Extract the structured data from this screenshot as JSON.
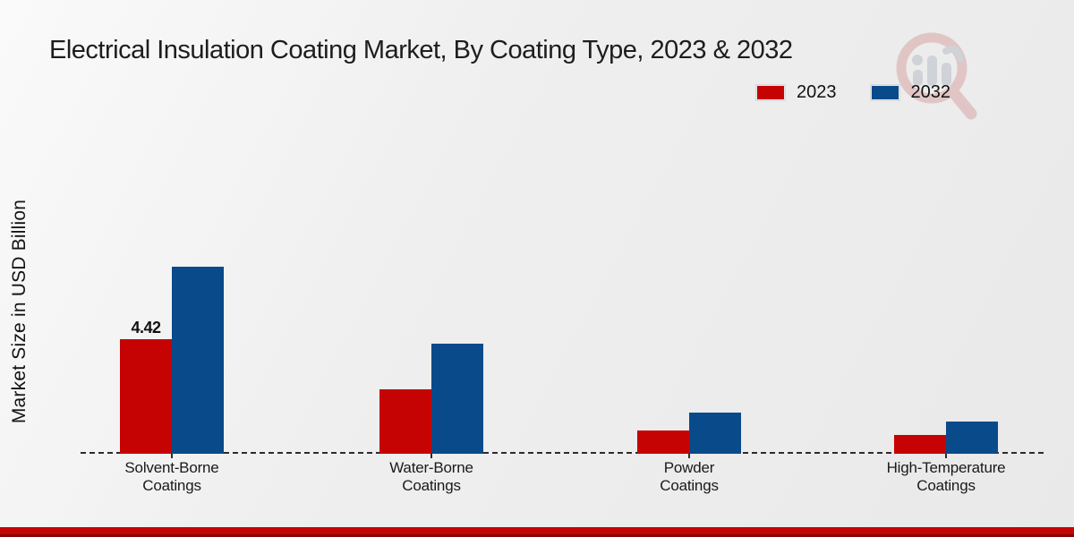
{
  "header": {
    "title": "Electrical Insulation Coating Market, By Coating Type, 2023 & 2032"
  },
  "watermark": {
    "name": "market-research-future-logo",
    "ring_color": "#d9a6a6",
    "bars_color": "#b9bdc6"
  },
  "footer": {
    "bar_color": "#c30505"
  },
  "chart_data": {
    "type": "bar",
    "title": "Electrical Insulation Coating Market, By Coating Type, 2023 & 2032",
    "xlabel": "",
    "ylabel": "Market Size in USD Billion",
    "categories": [
      "Solvent-Borne Coatings",
      "Water-Borne Coatings",
      "Powder Coatings",
      "High-Temperature Coatings"
    ],
    "series": [
      {
        "name": "2023",
        "color": "#c60303",
        "values": [
          4.42,
          2.5,
          0.9,
          0.72
        ]
      },
      {
        "name": "2032",
        "color": "#094a8a",
        "values": [
          7.2,
          4.25,
          1.58,
          1.26
        ]
      }
    ],
    "annotations": [
      {
        "series": "2023",
        "category_index": 0,
        "text": "4.42"
      }
    ],
    "ylim": [
      0,
      7.5
    ],
    "grid": false,
    "legend_position": "top-right",
    "baseline_style": "dashed"
  }
}
